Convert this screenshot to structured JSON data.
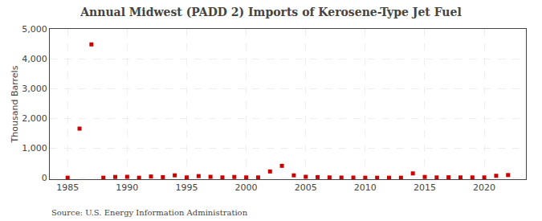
{
  "chart_data": {
    "type": "scatter",
    "title": "Annual Midwest (PADD 2) Imports of Kerosene-Type Jet Fuel",
    "ylabel": "Thousand Barrels",
    "annotations": [
      "Source: U.S. Energy Information Administration"
    ],
    "x": [
      1985,
      1986,
      1987,
      1988,
      1989,
      1990,
      1991,
      1992,
      1993,
      1994,
      1995,
      1996,
      1997,
      1998,
      1999,
      2000,
      2001,
      2002,
      2003,
      2004,
      2005,
      2006,
      2007,
      2008,
      2009,
      2010,
      2011,
      2012,
      2013,
      2014,
      2015,
      2016,
      2017,
      2018,
      2019,
      2020,
      2021,
      2022
    ],
    "values": [
      0,
      1650,
      4480,
      0,
      25,
      30,
      0,
      40,
      20,
      80,
      10,
      55,
      30,
      10,
      25,
      10,
      10,
      210,
      400,
      80,
      30,
      20,
      10,
      5,
      5,
      0,
      0,
      0,
      0,
      145,
      25,
      10,
      15,
      10,
      10,
      10,
      65,
      90
    ],
    "color": "#cc0000",
    "marker": "square",
    "xlim": [
      1983.5,
      2023.5
    ],
    "xticks": [
      1985,
      1990,
      1995,
      2000,
      2005,
      2010,
      2015,
      2020
    ],
    "ylim": [
      -50,
      5000
    ],
    "yticks": [
      0,
      {
        "value": 1000,
        "label": "1,000"
      },
      {
        "value": 2000,
        "label": "2,000"
      },
      {
        "value": 3000,
        "label": "3,000"
      },
      {
        "value": 4000,
        "label": "4,000"
      },
      {
        "value": 5000,
        "label": "5,000"
      }
    ],
    "grid": true
  }
}
